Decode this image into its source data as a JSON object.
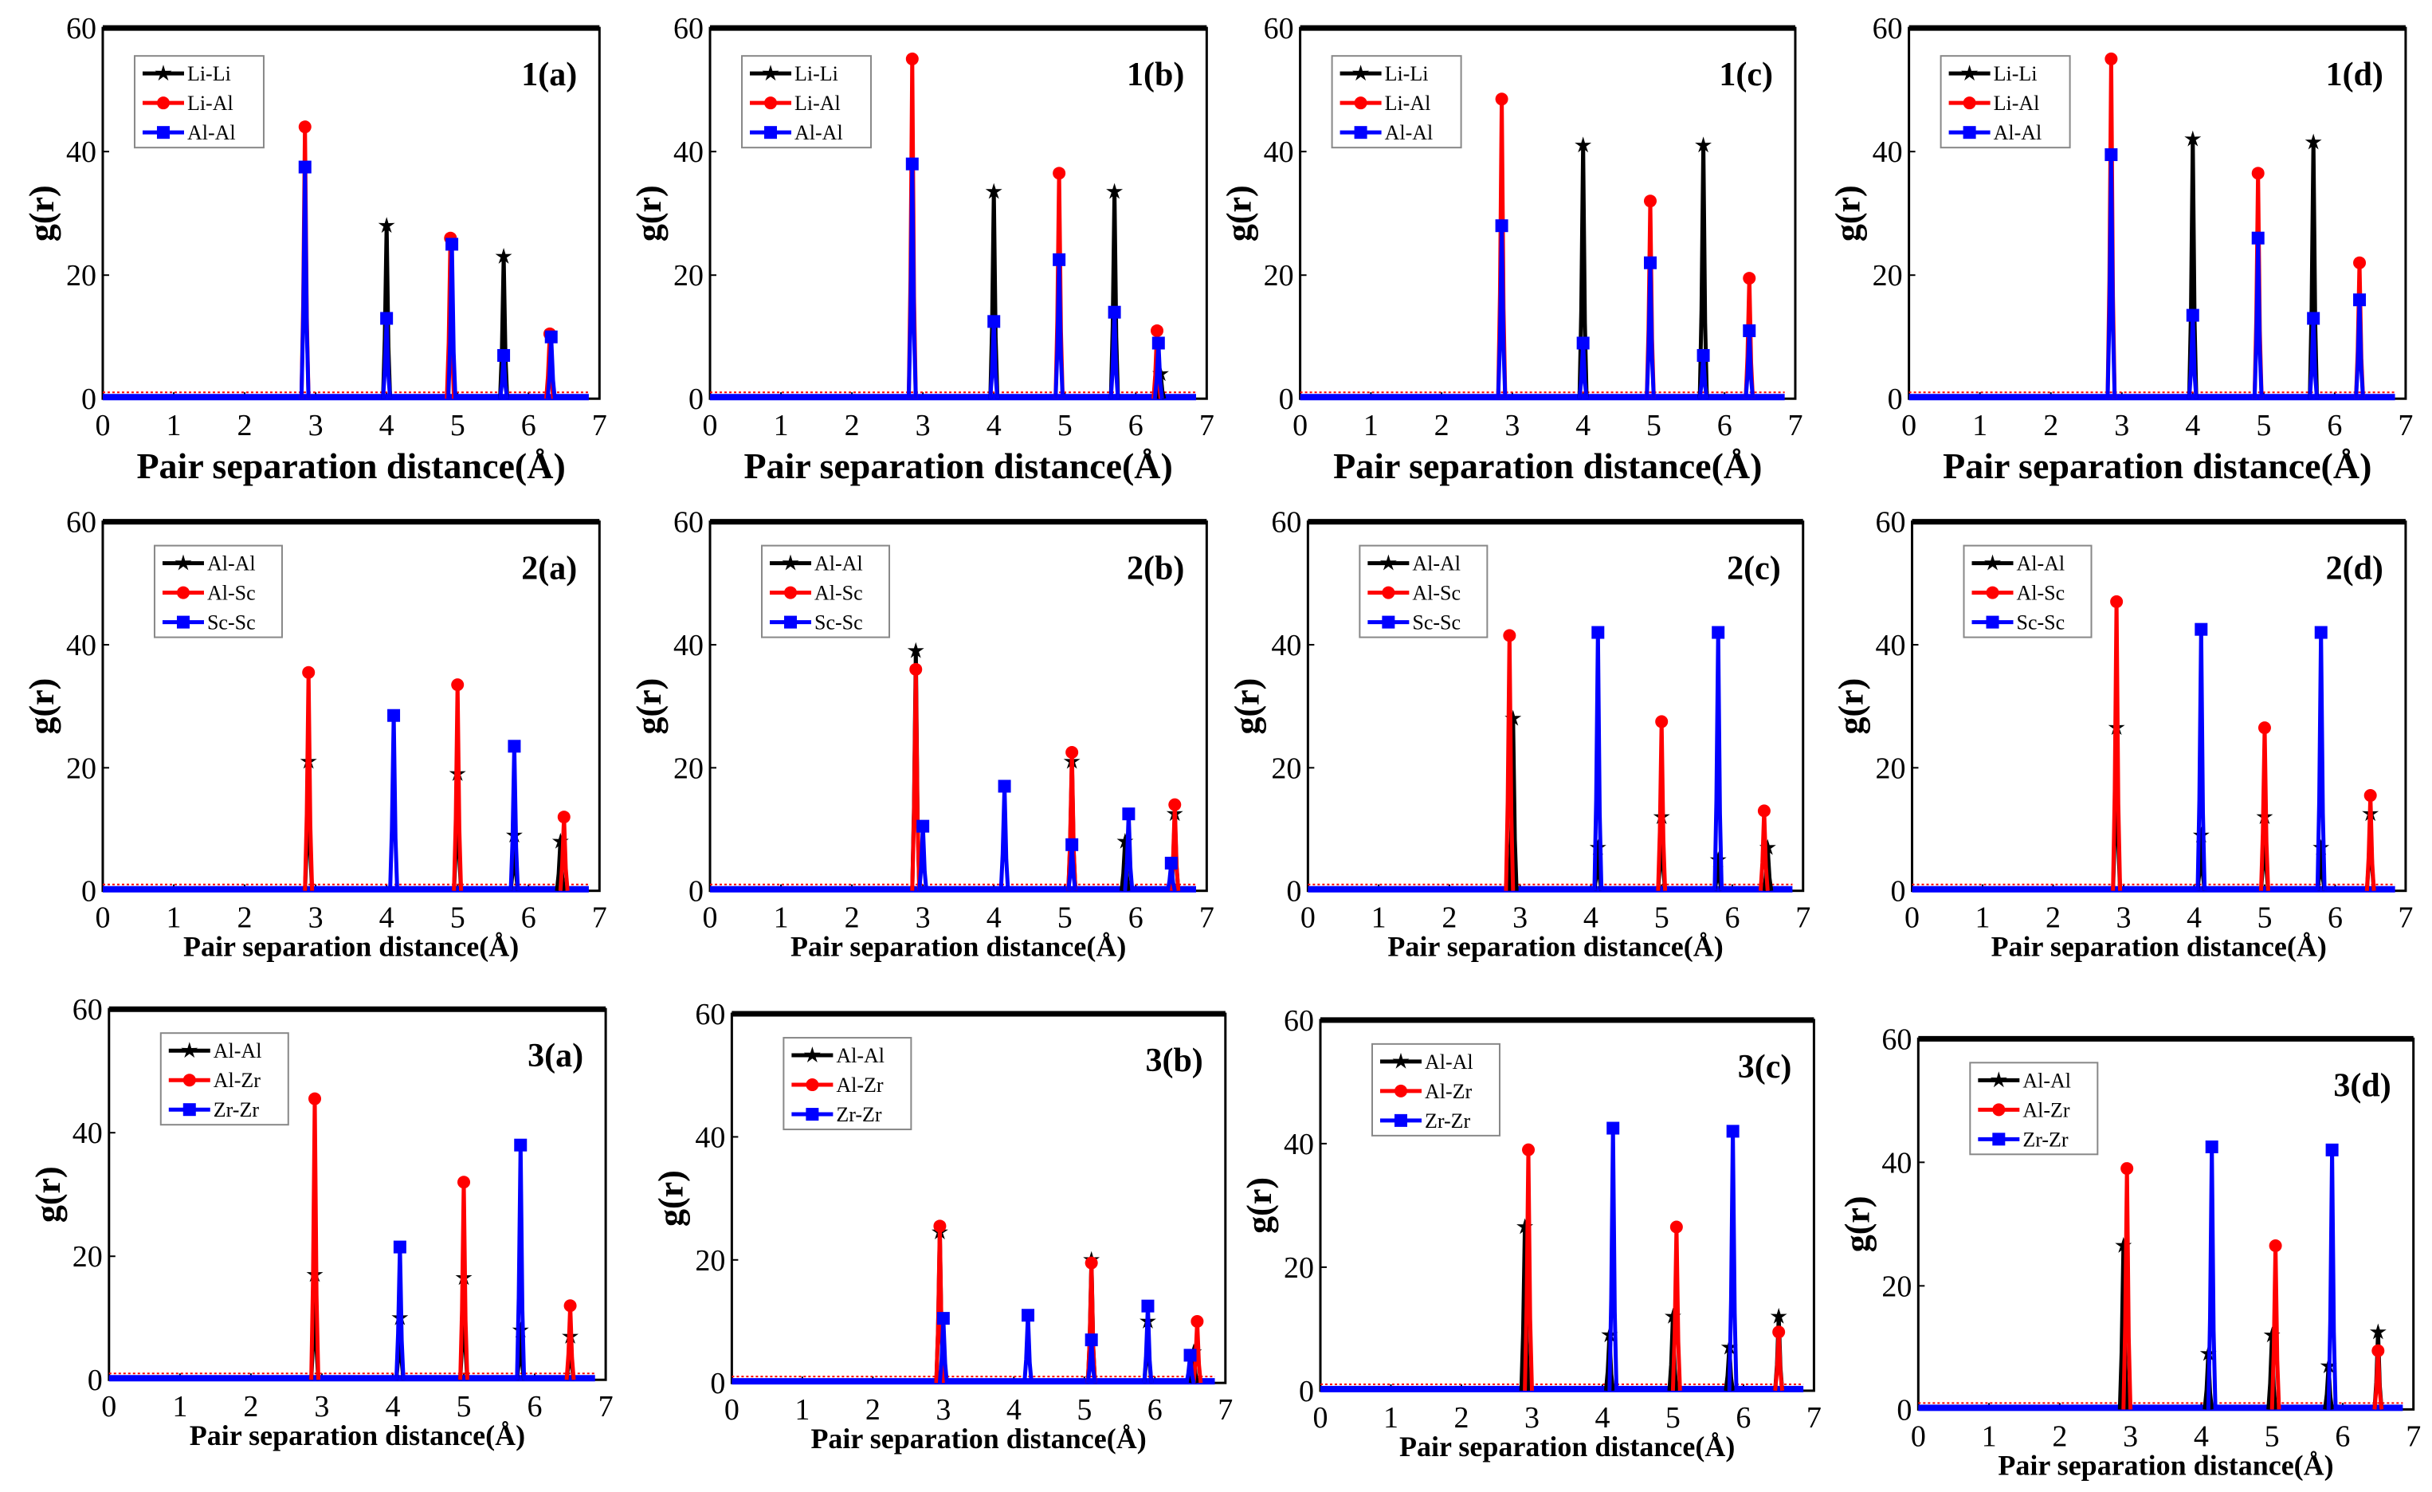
{
  "chart_data": [
    {
      "id": "1a",
      "type": "line",
      "panel_label": "1(a)",
      "xlabel": "Pair separation distance(Å)",
      "ylabel": "g(r)",
      "xlim": [
        0,
        7
      ],
      "ylim": [
        0,
        60
      ],
      "xticks": [
        0,
        1,
        2,
        3,
        4,
        5,
        6,
        7
      ],
      "yticks": [
        0,
        20,
        40,
        60
      ],
      "legend_position": "top-left",
      "series": [
        {
          "name": "Li-Li",
          "color": "#000000",
          "marker": "star",
          "peaks": [
            [
              4.0,
              28
            ],
            [
              5.65,
              23
            ]
          ]
        },
        {
          "name": "Li-Al",
          "color": "#ff0000",
          "marker": "circle",
          "peaks": [
            [
              2.85,
              44
            ],
            [
              4.9,
              26
            ],
            [
              6.3,
              10.5
            ]
          ]
        },
        {
          "name": "Al-Al",
          "color": "#0000ff",
          "marker": "square",
          "peaks": [
            [
              2.85,
              37.5
            ],
            [
              4.0,
              13
            ],
            [
              4.92,
              25
            ],
            [
              5.65,
              7
            ],
            [
              6.32,
              10
            ]
          ]
        }
      ]
    },
    {
      "id": "1b",
      "type": "line",
      "panel_label": "1(b)",
      "xlabel": "Pair separation distance(Å)",
      "ylabel": "g(r)",
      "xlim": [
        0,
        7
      ],
      "ylim": [
        0,
        60
      ],
      "xticks": [
        0,
        1,
        2,
        3,
        4,
        5,
        6,
        7
      ],
      "yticks": [
        0,
        20,
        40,
        60
      ],
      "legend_position": "top-left",
      "series": [
        {
          "name": "Li-Li",
          "color": "#000000",
          "marker": "star",
          "peaks": [
            [
              4.0,
              33.5
            ],
            [
              5.7,
              33.5
            ],
            [
              6.35,
              4
            ]
          ]
        },
        {
          "name": "Li-Al",
          "color": "#ff0000",
          "marker": "circle",
          "peaks": [
            [
              2.85,
              55
            ],
            [
              4.92,
              36.5
            ],
            [
              6.3,
              11
            ]
          ]
        },
        {
          "name": "Al-Al",
          "color": "#0000ff",
          "marker": "square",
          "peaks": [
            [
              2.85,
              38
            ],
            [
              4.0,
              12.5
            ],
            [
              4.92,
              22.5
            ],
            [
              5.7,
              14
            ],
            [
              6.32,
              9
            ]
          ]
        }
      ]
    },
    {
      "id": "1c",
      "type": "line",
      "panel_label": "1(c)",
      "xlabel": "Pair separation distance(Å)",
      "ylabel": "g(r)",
      "xlim": [
        0,
        7
      ],
      "ylim": [
        0,
        60
      ],
      "xticks": [
        0,
        1,
        2,
        3,
        4,
        5,
        6,
        7
      ],
      "yticks": [
        0,
        20,
        40,
        60
      ],
      "legend_position": "top-left",
      "series": [
        {
          "name": "Li-Li",
          "color": "#000000",
          "marker": "star",
          "peaks": [
            [
              4.0,
              41
            ],
            [
              5.7,
              41
            ]
          ]
        },
        {
          "name": "Li-Al",
          "color": "#ff0000",
          "marker": "circle",
          "peaks": [
            [
              2.85,
              48.5
            ],
            [
              4.95,
              32
            ],
            [
              6.35,
              19.5
            ]
          ]
        },
        {
          "name": "Al-Al",
          "color": "#0000ff",
          "marker": "square",
          "peaks": [
            [
              2.85,
              28
            ],
            [
              4.0,
              9
            ],
            [
              4.95,
              22
            ],
            [
              5.7,
              7
            ],
            [
              6.35,
              11
            ]
          ]
        }
      ]
    },
    {
      "id": "1d",
      "type": "line",
      "panel_label": "1(d)",
      "xlabel": "Pair separation distance(Å)",
      "ylabel": "g(r)",
      "xlim": [
        0,
        7
      ],
      "ylim": [
        0,
        60
      ],
      "xticks": [
        0,
        1,
        2,
        3,
        4,
        5,
        6,
        7
      ],
      "yticks": [
        0,
        20,
        40,
        60
      ],
      "legend_position": "top-left",
      "series": [
        {
          "name": "Li-Li",
          "color": "#000000",
          "marker": "star",
          "peaks": [
            [
              4.0,
              42
            ],
            [
              5.7,
              41.5
            ]
          ]
        },
        {
          "name": "Li-Al",
          "color": "#ff0000",
          "marker": "circle",
          "peaks": [
            [
              2.85,
              55
            ],
            [
              4.92,
              36.5
            ],
            [
              6.35,
              22
            ]
          ]
        },
        {
          "name": "Al-Al",
          "color": "#0000ff",
          "marker": "square",
          "peaks": [
            [
              2.85,
              39.5
            ],
            [
              4.0,
              13.5
            ],
            [
              4.92,
              26
            ],
            [
              5.7,
              13
            ],
            [
              6.35,
              16
            ]
          ]
        }
      ]
    },
    {
      "id": "2a",
      "type": "line",
      "panel_label": "2(a)",
      "xlabel": "Pair separation distance(Å)",
      "ylabel": "g(r)",
      "xlim": [
        0,
        7
      ],
      "ylim": [
        0,
        60
      ],
      "xticks": [
        0,
        1,
        2,
        3,
        4,
        5,
        6,
        7
      ],
      "yticks": [
        0,
        20,
        40,
        60
      ],
      "legend_position": "top-left",
      "series": [
        {
          "name": "Al-Al",
          "color": "#000000",
          "marker": "star",
          "peaks": [
            [
              2.9,
              21
            ],
            [
              5.0,
              19
            ],
            [
              5.8,
              9
            ],
            [
              6.45,
              8
            ]
          ]
        },
        {
          "name": "Al-Sc",
          "color": "#ff0000",
          "marker": "circle",
          "peaks": [
            [
              2.9,
              35.5
            ],
            [
              5.0,
              33.5
            ],
            [
              6.5,
              12
            ]
          ]
        },
        {
          "name": "Sc-Sc",
          "color": "#0000ff",
          "marker": "square",
          "peaks": [
            [
              4.1,
              28.5
            ],
            [
              5.8,
              23.5
            ]
          ]
        }
      ]
    },
    {
      "id": "2b",
      "type": "line",
      "panel_label": "2(b)",
      "xlabel": "Pair separation distance(Å)",
      "ylabel": "g(r)",
      "xlim": [
        0,
        7
      ],
      "ylim": [
        0,
        60
      ],
      "xticks": [
        0,
        1,
        2,
        3,
        4,
        5,
        6,
        7
      ],
      "yticks": [
        0,
        20,
        40,
        60
      ],
      "legend_position": "top-left",
      "series": [
        {
          "name": "Al-Al",
          "color": "#000000",
          "marker": "star",
          "peaks": [
            [
              2.9,
              39
            ],
            [
              5.1,
              21
            ],
            [
              5.85,
              8
            ],
            [
              6.55,
              12.5
            ]
          ]
        },
        {
          "name": "Al-Sc",
          "color": "#ff0000",
          "marker": "circle",
          "peaks": [
            [
              2.9,
              36
            ],
            [
              5.1,
              22.5
            ],
            [
              6.55,
              14
            ]
          ]
        },
        {
          "name": "Sc-Sc",
          "color": "#0000ff",
          "marker": "square",
          "peaks": [
            [
              3.0,
              10.5
            ],
            [
              4.15,
              17
            ],
            [
              5.1,
              7.5
            ],
            [
              5.9,
              12.5
            ],
            [
              6.5,
              4.5
            ]
          ]
        }
      ]
    },
    {
      "id": "2c",
      "type": "line",
      "panel_label": "2(c)",
      "xlabel": "Pair separation distance(Å)",
      "ylabel": "g(r)",
      "xlim": [
        0,
        7
      ],
      "ylim": [
        0,
        60
      ],
      "xticks": [
        0,
        1,
        2,
        3,
        4,
        5,
        6,
        7
      ],
      "yticks": [
        0,
        20,
        40,
        60
      ],
      "legend_position": "top-left",
      "series": [
        {
          "name": "Al-Al",
          "color": "#000000",
          "marker": "star",
          "peaks": [
            [
              2.9,
              28
            ],
            [
              4.1,
              7
            ],
            [
              5.0,
              12
            ],
            [
              5.8,
              5
            ],
            [
              6.5,
              7
            ]
          ]
        },
        {
          "name": "Al-Sc",
          "color": "#ff0000",
          "marker": "circle",
          "peaks": [
            [
              2.85,
              41.5
            ],
            [
              5.0,
              27.5
            ],
            [
              6.45,
              13
            ]
          ]
        },
        {
          "name": "Sc-Sc",
          "color": "#0000ff",
          "marker": "square",
          "peaks": [
            [
              4.1,
              42
            ],
            [
              5.8,
              42
            ]
          ]
        }
      ]
    },
    {
      "id": "2d",
      "type": "line",
      "panel_label": "2(d)",
      "xlabel": "Pair separation distance(Å)",
      "ylabel": "g(r)",
      "xlim": [
        0,
        7
      ],
      "ylim": [
        0,
        60
      ],
      "xticks": [
        0,
        1,
        2,
        3,
        4,
        5,
        6,
        7
      ],
      "yticks": [
        0,
        20,
        40,
        60
      ],
      "legend_position": "top-left",
      "series": [
        {
          "name": "Al-Al",
          "color": "#000000",
          "marker": "star",
          "peaks": [
            [
              2.9,
              26.5
            ],
            [
              4.1,
              9
            ],
            [
              5.0,
              12
            ],
            [
              5.8,
              7
            ],
            [
              6.5,
              12.5
            ]
          ]
        },
        {
          "name": "Al-Sc",
          "color": "#ff0000",
          "marker": "circle",
          "peaks": [
            [
              2.9,
              47
            ],
            [
              5.0,
              26.5
            ],
            [
              6.5,
              15.5
            ]
          ]
        },
        {
          "name": "Sc-Sc",
          "color": "#0000ff",
          "marker": "square",
          "peaks": [
            [
              4.1,
              42.5
            ],
            [
              5.8,
              42
            ]
          ]
        }
      ]
    },
    {
      "id": "3a",
      "type": "line",
      "panel_label": "3(a)",
      "xlabel": "Pair separation distance(Å)",
      "ylabel": "g(r)",
      "xlim": [
        0,
        7
      ],
      "ylim": [
        0,
        60
      ],
      "xticks": [
        0,
        1,
        2,
        3,
        4,
        5,
        6,
        7
      ],
      "yticks": [
        0,
        20,
        40,
        60
      ],
      "legend_position": "top-left",
      "series": [
        {
          "name": "Al-Al",
          "color": "#000000",
          "marker": "star",
          "peaks": [
            [
              2.9,
              17
            ],
            [
              4.1,
              10
            ],
            [
              5.0,
              16.5
            ],
            [
              5.8,
              8
            ],
            [
              6.5,
              7
            ]
          ]
        },
        {
          "name": "Al-Zr",
          "color": "#ff0000",
          "marker": "circle",
          "peaks": [
            [
              2.9,
              45.5
            ],
            [
              5.0,
              32
            ],
            [
              6.5,
              12
            ]
          ]
        },
        {
          "name": "Zr-Zr",
          "color": "#0000ff",
          "marker": "square",
          "peaks": [
            [
              4.1,
              21.5
            ],
            [
              5.8,
              38
            ]
          ]
        }
      ]
    },
    {
      "id": "3b",
      "type": "line",
      "panel_label": "3(b)",
      "xlabel": "Pair separation distance(Å)",
      "ylabel": "g(r)",
      "xlim": [
        0,
        7
      ],
      "ylim": [
        0,
        60
      ],
      "xticks": [
        0,
        1,
        2,
        3,
        4,
        5,
        6,
        7
      ],
      "yticks": [
        0,
        20,
        40,
        60
      ],
      "legend_position": "top-left",
      "series": [
        {
          "name": "Al-Al",
          "color": "#000000",
          "marker": "star",
          "peaks": [
            [
              2.95,
              24.5
            ],
            [
              5.1,
              20
            ],
            [
              5.9,
              10
            ],
            [
              6.55,
              5
            ]
          ]
        },
        {
          "name": "Al-Zr",
          "color": "#ff0000",
          "marker": "circle",
          "peaks": [
            [
              2.95,
              25.5
            ],
            [
              5.1,
              19.5
            ],
            [
              6.6,
              10
            ]
          ]
        },
        {
          "name": "Zr-Zr",
          "color": "#0000ff",
          "marker": "square",
          "peaks": [
            [
              3.0,
              10.5
            ],
            [
              4.2,
              11
            ],
            [
              5.1,
              7
            ],
            [
              5.9,
              12.5
            ],
            [
              6.5,
              4.5
            ]
          ]
        }
      ]
    },
    {
      "id": "3c",
      "type": "line",
      "panel_label": "3(c)",
      "xlabel": "Pair separation distance(Å)",
      "ylabel": "g(r)",
      "xlim": [
        0,
        7
      ],
      "ylim": [
        0,
        60
      ],
      "xticks": [
        0,
        1,
        2,
        3,
        4,
        5,
        6,
        7
      ],
      "yticks": [
        0,
        20,
        40,
        60
      ],
      "legend_position": "top-left",
      "series": [
        {
          "name": "Al-Al",
          "color": "#000000",
          "marker": "star",
          "peaks": [
            [
              2.9,
              26.5
            ],
            [
              4.1,
              9
            ],
            [
              5.0,
              12
            ],
            [
              5.8,
              7
            ],
            [
              6.5,
              12
            ]
          ]
        },
        {
          "name": "Al-Zr",
          "color": "#ff0000",
          "marker": "circle",
          "peaks": [
            [
              2.95,
              39
            ],
            [
              5.05,
              26.5
            ],
            [
              6.5,
              9.5
            ]
          ]
        },
        {
          "name": "Zr-Zr",
          "color": "#0000ff",
          "marker": "square",
          "peaks": [
            [
              4.15,
              42.5
            ],
            [
              5.85,
              42
            ]
          ]
        }
      ]
    },
    {
      "id": "3d",
      "type": "line",
      "panel_label": "3(d)",
      "xlabel": "Pair separation distance(Å)",
      "ylabel": "g(r)",
      "xlim": [
        0,
        7
      ],
      "ylim": [
        0,
        60
      ],
      "xticks": [
        0,
        1,
        2,
        3,
        4,
        5,
        6,
        7
      ],
      "yticks": [
        0,
        20,
        40,
        60
      ],
      "legend_position": "top-left",
      "series": [
        {
          "name": "Al-Al",
          "color": "#000000",
          "marker": "star",
          "peaks": [
            [
              2.9,
              26.5
            ],
            [
              4.1,
              9
            ],
            [
              5.0,
              12
            ],
            [
              5.8,
              7
            ],
            [
              6.5,
              12.5
            ]
          ]
        },
        {
          "name": "Al-Zr",
          "color": "#ff0000",
          "marker": "circle",
          "peaks": [
            [
              2.95,
              39
            ],
            [
              5.05,
              26.5
            ],
            [
              6.5,
              9.5
            ]
          ]
        },
        {
          "name": "Zr-Zr",
          "color": "#0000ff",
          "marker": "square",
          "peaks": [
            [
              4.15,
              42.5
            ],
            [
              5.85,
              42
            ]
          ]
        }
      ]
    }
  ]
}
